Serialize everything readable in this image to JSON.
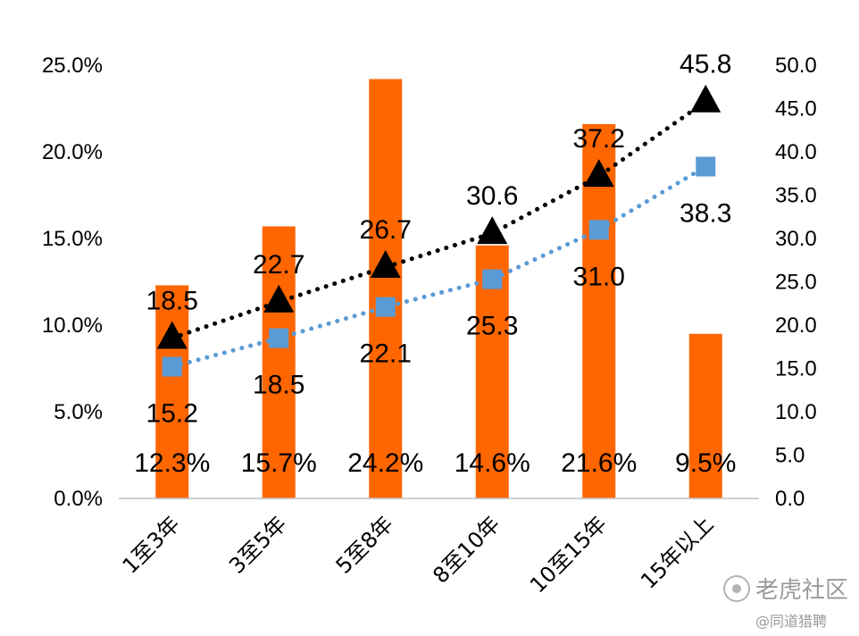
{
  "chart_data": {
    "type": "bar",
    "categories": [
      "1至3年",
      "3至5年",
      "5至8年",
      "8至10年",
      "10至15年",
      "15年以上"
    ],
    "bars": {
      "values": [
        12.3,
        15.7,
        24.2,
        14.6,
        21.6,
        9.5
      ],
      "labels": [
        "12.3%",
        "15.7%",
        "24.2%",
        "14.6%",
        "21.6%",
        "9.5%"
      ],
      "color": "#FF6600",
      "axis": "left"
    },
    "lines": [
      {
        "values": [
          18.5,
          22.7,
          26.7,
          30.6,
          37.2,
          45.8
        ],
        "labels": [
          "18.5",
          "22.7",
          "26.7",
          "30.6",
          "37.2",
          "45.8"
        ],
        "color": "#000000",
        "marker": "triangle",
        "axis": "right",
        "line_style": "dotted"
      },
      {
        "values": [
          15.2,
          18.5,
          22.1,
          25.3,
          31.0,
          38.3
        ],
        "labels": [
          "15.2",
          "18.5",
          "22.1",
          "25.3",
          "31.0",
          "38.3"
        ],
        "color": "#5B9BD5",
        "marker": "square",
        "axis": "right",
        "line_style": "dotted"
      }
    ],
    "y_left": {
      "min": 0,
      "max": 25,
      "ticks": [
        "0.0%",
        "5.0%",
        "10.0%",
        "15.0%",
        "20.0%",
        "25.0%"
      ]
    },
    "y_right": {
      "min": 0,
      "max": 50,
      "ticks": [
        "0.0",
        "5.0",
        "10.0",
        "15.0",
        "20.0",
        "25.0",
        "30.0",
        "35.0",
        "40.0",
        "45.0",
        "50.0"
      ]
    },
    "grid": false,
    "legend": "none"
  },
  "watermark": {
    "main": "老虎社区",
    "sub": "@同道猎聘"
  }
}
